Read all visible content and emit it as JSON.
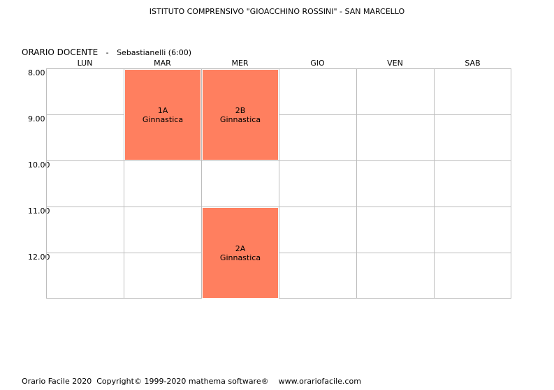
{
  "school_title": "ISTITUTO COMPRENSIVO \"GIOACCHINO ROSSINI\" - SAN MARCELLO",
  "heading": {
    "label": "ORARIO DOCENTE",
    "separator": "-",
    "teacher": "Sebastianelli (6:00)"
  },
  "days": [
    "LUN",
    "MAR",
    "MER",
    "GIO",
    "VEN",
    "SAB"
  ],
  "times": [
    "8.00",
    "9.00",
    "10.00",
    "11.00",
    "12.00"
  ],
  "lessons": [
    {
      "class": "1A",
      "subject": "Ginnastica"
    },
    {
      "class": "2B",
      "subject": "Ginnastica"
    },
    {
      "class": "2A",
      "subject": "Ginnastica"
    }
  ],
  "lesson_color": "#ff7f5f",
  "footer": {
    "app": "Orario Facile 2020",
    "copyright": "Copyright© 1999-2020 mathema software®",
    "url": "www.orariofacile.com"
  }
}
